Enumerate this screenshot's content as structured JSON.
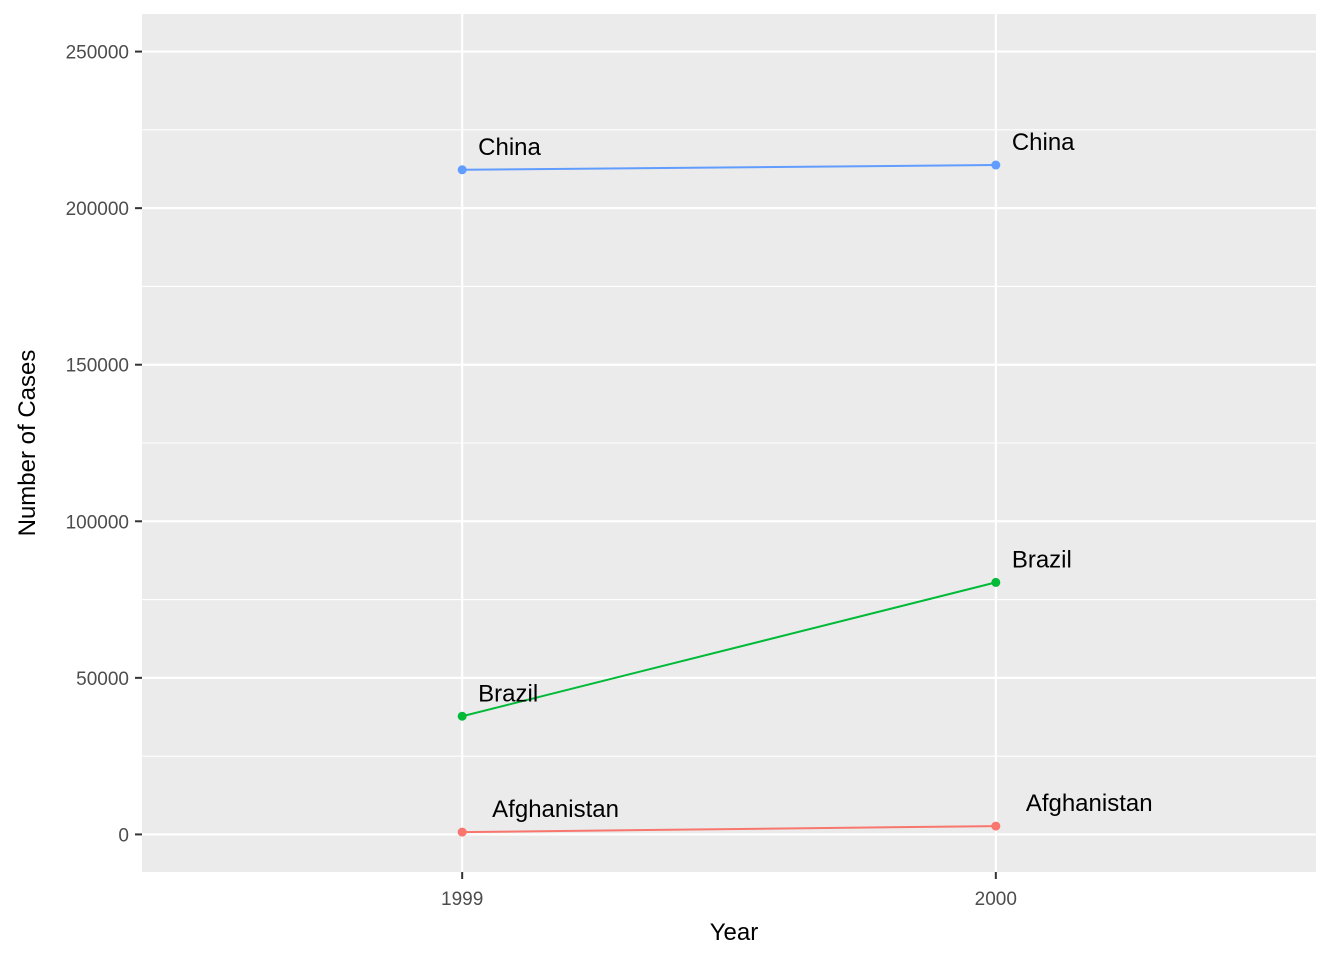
{
  "chart_data": {
    "type": "line",
    "title": "",
    "xlabel": "Year",
    "ylabel": "Number of Cases",
    "x": [
      1999,
      2000
    ],
    "x_tick_labels": [
      "1999",
      "2000"
    ],
    "xlim": [
      1998.4,
      2000.6
    ],
    "ylim": [
      -12000,
      262000
    ],
    "y_ticks": [
      0,
      50000,
      100000,
      150000,
      200000,
      250000
    ],
    "y_tick_labels": [
      "0",
      "50000",
      "100000",
      "150000",
      "200000",
      "250000"
    ],
    "grid": true,
    "legend": "none",
    "background": "#ebebeb",
    "series": [
      {
        "name": "Afghanistan",
        "values": [
          745,
          2666
        ],
        "color": "#f8766d"
      },
      {
        "name": "Brazil",
        "values": [
          37737,
          80488
        ],
        "color": "#00ba38"
      },
      {
        "name": "China",
        "values": [
          212258,
          213766
        ],
        "color": "#619cff"
      }
    ]
  }
}
